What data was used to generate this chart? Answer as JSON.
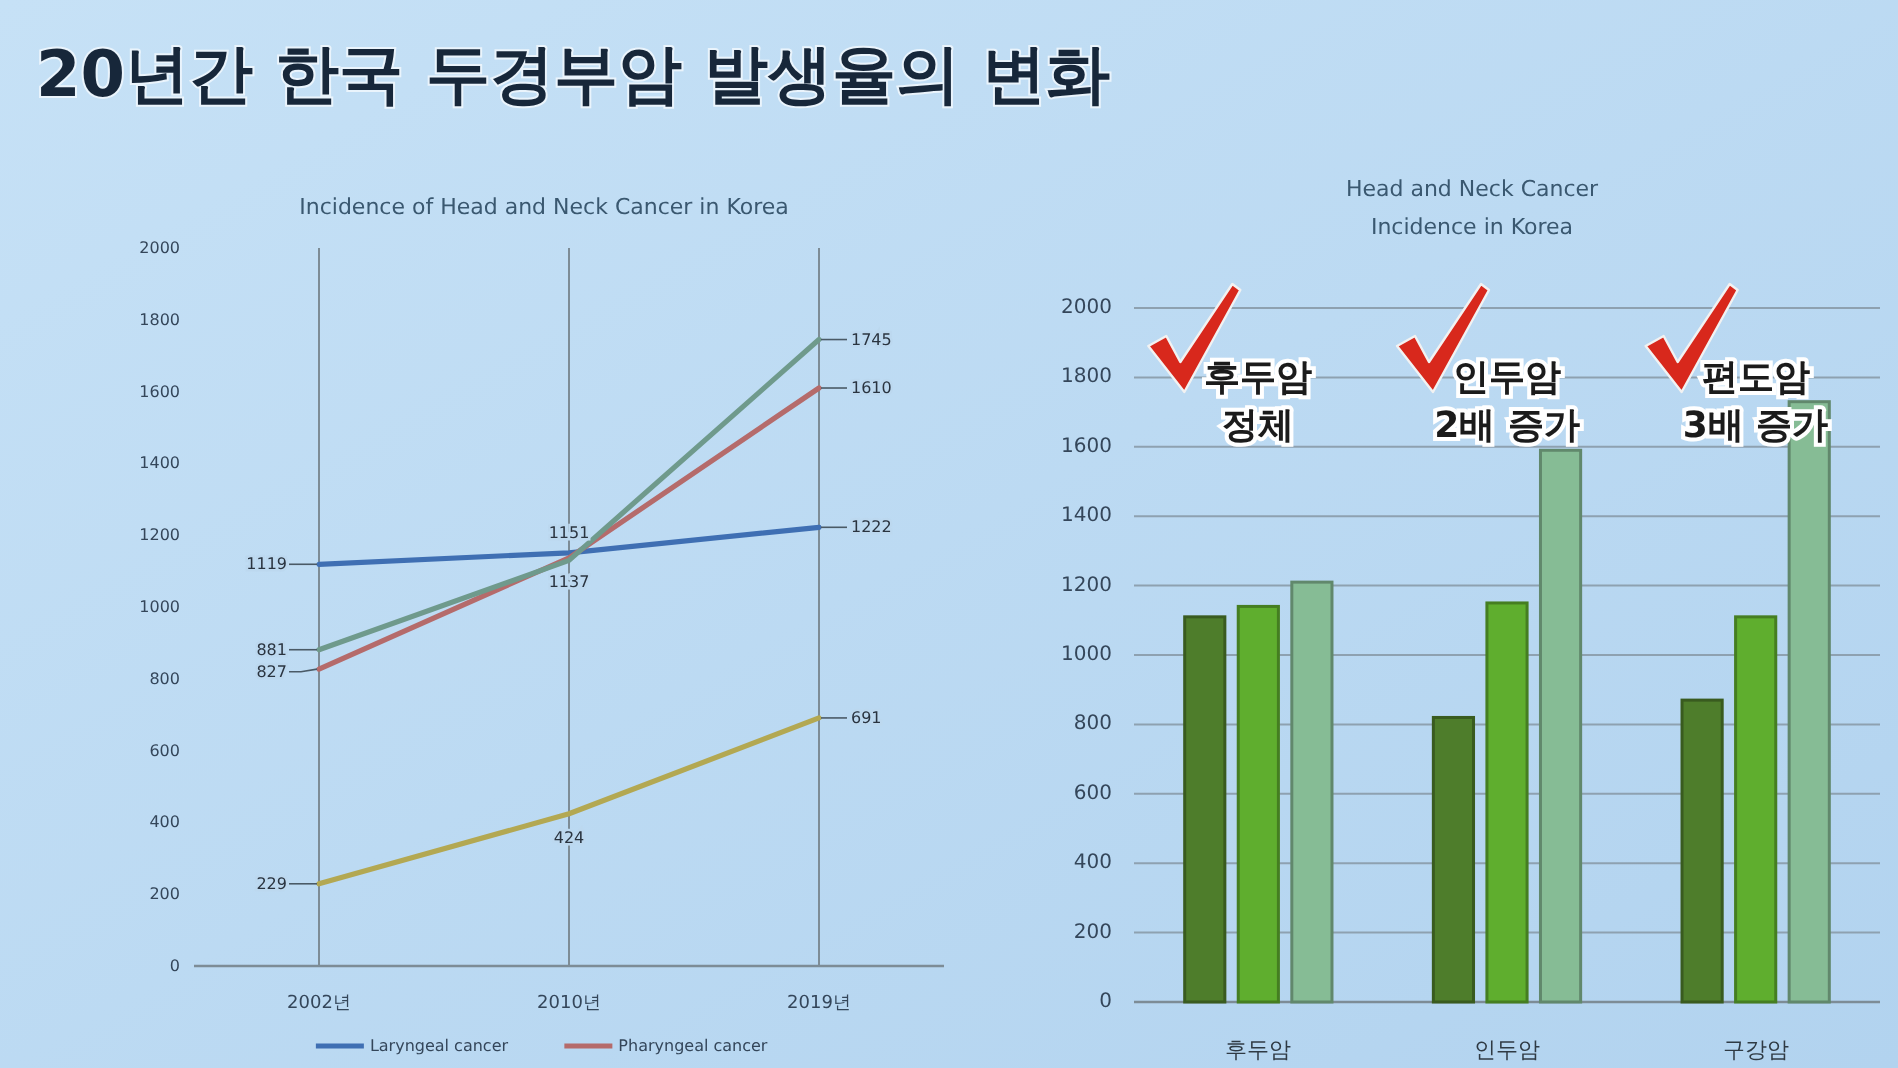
{
  "chart_data": [
    {
      "type": "line",
      "title": "20년간 한국 두경부암 발생율의 변화",
      "subtitle": "Incidence of Head and Neck Cancer in Korea",
      "categories": [
        "2002년",
        "2010년",
        "2019년"
      ],
      "series": [
        {
          "name": "Laryngeal cancer",
          "color": "#3f6fb3",
          "values": [
            1119,
            1151,
            1222
          ],
          "value_labels": [
            "1119",
            "1151",
            "1222"
          ]
        },
        {
          "name": "Pharyngeal cancer",
          "color": "#b56b6b",
          "values": [
            827,
            1137,
            1610
          ],
          "value_labels": [
            "827",
            "1137",
            "1610"
          ]
        },
        {
          "color": "#6f9a8c",
          "values": [
            881,
            1130,
            1745
          ],
          "value_labels": [
            "881",
            null,
            "1745"
          ]
        },
        {
          "color": "#b3a852",
          "values": [
            229,
            424,
            691
          ],
          "value_labels": [
            "229",
            "424",
            "691"
          ]
        }
      ],
      "ylim": [
        0,
        2000
      ],
      "yticks": [
        0,
        200,
        400,
        600,
        800,
        1000,
        1200,
        1400,
        1600,
        1800,
        2000
      ],
      "grid": "x",
      "legend": "bottom"
    },
    {
      "type": "bar",
      "title": "Head and Neck Cancer Incidence in Korea",
      "categories": [
        "후두암",
        "인두암",
        "구강암"
      ],
      "series": [
        {
          "color": "#4e7d2b",
          "values": [
            1110,
            820,
            870
          ]
        },
        {
          "color": "#5fae2e",
          "values": [
            1140,
            1150,
            1110
          ]
        },
        {
          "color": "#86bc95",
          "values": [
            1210,
            1590,
            1730
          ]
        }
      ],
      "ylim": [
        0,
        2000
      ],
      "yticks": [
        0,
        200,
        400,
        600,
        800,
        1000,
        1200,
        1400,
        1600,
        1800,
        2000
      ],
      "grid": "y",
      "annotations": [
        "후두암 정체",
        "인두암 2배 증가",
        "편도암 3배 증가"
      ]
    }
  ]
}
